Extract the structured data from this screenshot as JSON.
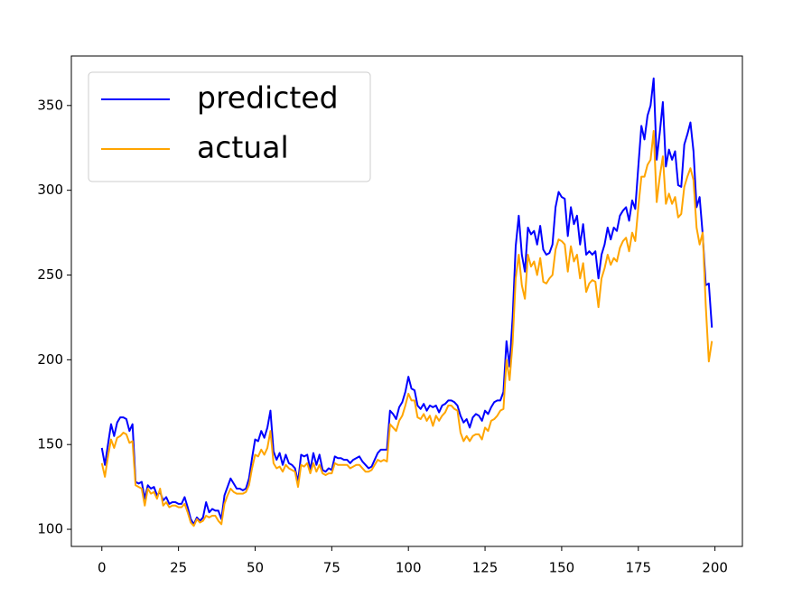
{
  "chart_data": {
    "type": "line",
    "x": [
      0,
      1,
      2,
      3,
      4,
      5,
      6,
      7,
      8,
      9,
      10,
      11,
      12,
      13,
      14,
      15,
      16,
      17,
      18,
      19,
      20,
      21,
      22,
      23,
      24,
      25,
      26,
      27,
      28,
      29,
      30,
      31,
      32,
      33,
      34,
      35,
      36,
      37,
      38,
      39,
      40,
      41,
      42,
      43,
      44,
      45,
      46,
      47,
      48,
      49,
      50,
      51,
      52,
      53,
      54,
      55,
      56,
      57,
      58,
      59,
      60,
      61,
      62,
      63,
      64,
      65,
      66,
      67,
      68,
      69,
      70,
      71,
      72,
      73,
      74,
      75,
      76,
      77,
      78,
      79,
      80,
      81,
      82,
      83,
      84,
      85,
      86,
      87,
      88,
      89,
      90,
      91,
      92,
      93,
      94,
      95,
      96,
      97,
      98,
      99,
      100,
      101,
      102,
      103,
      104,
      105,
      106,
      107,
      108,
      109,
      110,
      111,
      112,
      113,
      114,
      115,
      116,
      117,
      118,
      119,
      120,
      121,
      122,
      123,
      124,
      125,
      126,
      127,
      128,
      129,
      130,
      131,
      132,
      133,
      134,
      135,
      136,
      137,
      138,
      139,
      140,
      141,
      142,
      143,
      144,
      145,
      146,
      147,
      148,
      149,
      150,
      151,
      152,
      153,
      154,
      155,
      156,
      157,
      158,
      159,
      160,
      161,
      162,
      163,
      164,
      165,
      166,
      167,
      168,
      169,
      170,
      171,
      172,
      173,
      174,
      175,
      176,
      177,
      178,
      179,
      180,
      181,
      182,
      183,
      184,
      185,
      186,
      187,
      188,
      189,
      190,
      191,
      192,
      193,
      194,
      195,
      196,
      197,
      198,
      199
    ],
    "series": [
      {
        "name": "predicted",
        "color": "#0000ff",
        "values": [
          148,
          138,
          150,
          162,
          155,
          163,
          166,
          166,
          165,
          158,
          162,
          128,
          127,
          128,
          118,
          126,
          124,
          125,
          120,
          122,
          117,
          119,
          115,
          116,
          116,
          115,
          115,
          119,
          113,
          106,
          103,
          107,
          105,
          107,
          116,
          110,
          112,
          111,
          111,
          106,
          120,
          125,
          130,
          127,
          124,
          124,
          123,
          124,
          130,
          142,
          153,
          152,
          158,
          154,
          160,
          170,
          146,
          141,
          145,
          138,
          144,
          139,
          138,
          136,
          128,
          144,
          143,
          144,
          135,
          145,
          138,
          144,
          135,
          134,
          136,
          135,
          143,
          142,
          142,
          141,
          141,
          139,
          141,
          142,
          143,
          140,
          138,
          136,
          137,
          141,
          145,
          147,
          147,
          147,
          170,
          168,
          165,
          172,
          175,
          181,
          190,
          183,
          182,
          173,
          171,
          174,
          170,
          173,
          172,
          173,
          169,
          173,
          174,
          176,
          176,
          175,
          173,
          167,
          163,
          165,
          160,
          166,
          168,
          167,
          164,
          170,
          168,
          172,
          175,
          176,
          176,
          181,
          211,
          196,
          225,
          267,
          285,
          262,
          252,
          278,
          274,
          276,
          268,
          279,
          265,
          262,
          263,
          268,
          290,
          299,
          296,
          295,
          273,
          290,
          280,
          285,
          268,
          280,
          262,
          264,
          262,
          264,
          248,
          262,
          268,
          278,
          271,
          278,
          276,
          285,
          288,
          290,
          282,
          294,
          289,
          314,
          338,
          330,
          344,
          350,
          366,
          318,
          334,
          352,
          314,
          324,
          318,
          323,
          303,
          302,
          327,
          333,
          340,
          323,
          290,
          296,
          274,
          244,
          245,
          219
        ]
      },
      {
        "name": "actual",
        "color": "#ffa500",
        "values": [
          139,
          131,
          143,
          153,
          148,
          154,
          155,
          157,
          156,
          151,
          152,
          126,
          125,
          124,
          114,
          124,
          121,
          122,
          118,
          124,
          114,
          116,
          113,
          114,
          114,
          113,
          113,
          115,
          110,
          104,
          102,
          106,
          104,
          105,
          108,
          107,
          108,
          108,
          105,
          103,
          115,
          120,
          124,
          122,
          121,
          121,
          121,
          122,
          126,
          136,
          144,
          143,
          147,
          144,
          148,
          158,
          139,
          136,
          137,
          134,
          138,
          136,
          135,
          134,
          125,
          138,
          137,
          139,
          133,
          139,
          134,
          138,
          133,
          132,
          133,
          133,
          139,
          138,
          138,
          138,
          138,
          136,
          137,
          138,
          138,
          136,
          134,
          134,
          135,
          138,
          141,
          140,
          141,
          140,
          162,
          160,
          158,
          164,
          167,
          173,
          180,
          176,
          176,
          166,
          165,
          168,
          164,
          167,
          161,
          167,
          164,
          167,
          169,
          173,
          173,
          171,
          170,
          157,
          152,
          155,
          152,
          155,
          156,
          156,
          153,
          160,
          158,
          164,
          165,
          167,
          170,
          171,
          200,
          188,
          210,
          248,
          262,
          244,
          236,
          262,
          255,
          258,
          250,
          260,
          246,
          245,
          248,
          250,
          265,
          271,
          270,
          268,
          252,
          267,
          258,
          262,
          248,
          257,
          240,
          245,
          247,
          246,
          231,
          248,
          254,
          262,
          256,
          260,
          258,
          266,
          270,
          272,
          264,
          275,
          270,
          290,
          308,
          308,
          315,
          318,
          335,
          293,
          308,
          320,
          292,
          298,
          292,
          296,
          284,
          286,
          302,
          308,
          313,
          306,
          278,
          268,
          275,
          232,
          199,
          211
        ]
      }
    ],
    "xlim": [
      -9.95,
      208.95
    ],
    "xticks": [
      0,
      25,
      50,
      75,
      100,
      125,
      150,
      175,
      200
    ],
    "ylim": [
      89.9,
      379.2
    ],
    "yticks": [
      100,
      150,
      200,
      250,
      300,
      350
    ],
    "legend": "upper left",
    "grid": false
  }
}
